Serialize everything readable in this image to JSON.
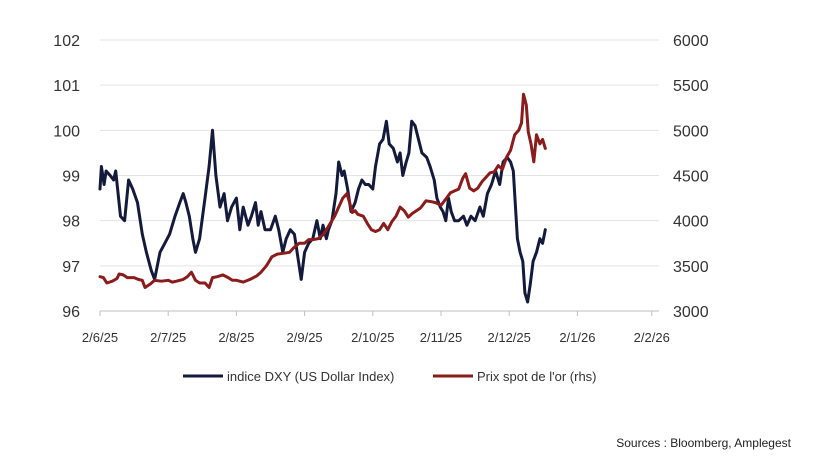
{
  "chart_data": {
    "type": "line",
    "title": "",
    "xlabel": "",
    "ylabel_left": "",
    "ylabel_right": "",
    "x_tick_labels": [
      "2/6/25",
      "2/7/25",
      "2/8/25",
      "2/9/25",
      "2/10/25",
      "2/11/25",
      "2/12/25",
      "2/1/26",
      "2/2/26"
    ],
    "x_range": [
      0,
      8.09
    ],
    "y_left": {
      "ticks": [
        96,
        97,
        98,
        99,
        100,
        101,
        102
      ],
      "range": [
        96,
        102
      ]
    },
    "y_right": {
      "ticks": [
        3000,
        3500,
        4000,
        4500,
        5000,
        5500,
        6000
      ],
      "range": [
        3000,
        6000
      ]
    },
    "grid": "horizontal",
    "legend_position": "bottom-center",
    "series": [
      {
        "name": "indice DXY (US Dollar Index)",
        "axis": "left",
        "color": "#141a3c",
        "points": [
          [
            0.0,
            98.7
          ],
          [
            0.02,
            99.2
          ],
          [
            0.06,
            98.8
          ],
          [
            0.09,
            99.1
          ],
          [
            0.15,
            99.0
          ],
          [
            0.2,
            98.9
          ],
          [
            0.23,
            99.1
          ],
          [
            0.3,
            98.1
          ],
          [
            0.36,
            98.0
          ],
          [
            0.42,
            98.9
          ],
          [
            0.48,
            98.7
          ],
          [
            0.55,
            98.4
          ],
          [
            0.62,
            97.7
          ],
          [
            0.68,
            97.3
          ],
          [
            0.75,
            96.9
          ],
          [
            0.8,
            96.7
          ],
          [
            0.88,
            97.3
          ],
          [
            0.95,
            97.5
          ],
          [
            1.02,
            97.7
          ],
          [
            1.1,
            98.1
          ],
          [
            1.17,
            98.4
          ],
          [
            1.22,
            98.6
          ],
          [
            1.26,
            98.4
          ],
          [
            1.31,
            98.1
          ],
          [
            1.36,
            97.6
          ],
          [
            1.4,
            97.3
          ],
          [
            1.46,
            97.6
          ],
          [
            1.54,
            98.5
          ],
          [
            1.6,
            99.2
          ],
          [
            1.65,
            100.0
          ],
          [
            1.7,
            99.0
          ],
          [
            1.76,
            98.3
          ],
          [
            1.82,
            98.6
          ],
          [
            1.87,
            98.0
          ],
          [
            1.93,
            98.3
          ],
          [
            2.0,
            98.5
          ],
          [
            2.05,
            97.8
          ],
          [
            2.1,
            98.3
          ],
          [
            2.17,
            97.9
          ],
          [
            2.22,
            98.1
          ],
          [
            2.28,
            98.4
          ],
          [
            2.32,
            97.9
          ],
          [
            2.36,
            98.2
          ],
          [
            2.42,
            97.8
          ],
          [
            2.5,
            97.8
          ],
          [
            2.57,
            98.1
          ],
          [
            2.62,
            97.8
          ],
          [
            2.68,
            97.3
          ],
          [
            2.73,
            97.6
          ],
          [
            2.79,
            97.8
          ],
          [
            2.85,
            97.7
          ],
          [
            2.9,
            97.2
          ],
          [
            2.95,
            96.7
          ],
          [
            3.0,
            97.3
          ],
          [
            3.06,
            97.5
          ],
          [
            3.12,
            97.6
          ],
          [
            3.18,
            98.0
          ],
          [
            3.23,
            97.6
          ],
          [
            3.27,
            97.9
          ],
          [
            3.32,
            97.6
          ],
          [
            3.35,
            97.8
          ],
          [
            3.4,
            98.0
          ],
          [
            3.46,
            98.6
          ],
          [
            3.5,
            99.3
          ],
          [
            3.55,
            99.0
          ],
          [
            3.58,
            99.1
          ],
          [
            3.63,
            98.7
          ],
          [
            3.68,
            98.2
          ],
          [
            3.74,
            98.4
          ],
          [
            3.79,
            98.7
          ],
          [
            3.84,
            98.9
          ],
          [
            3.89,
            98.8
          ],
          [
            3.94,
            98.8
          ],
          [
            4.0,
            98.7
          ],
          [
            4.04,
            99.2
          ],
          [
            4.1,
            99.7
          ],
          [
            4.15,
            99.8
          ],
          [
            4.2,
            100.2
          ],
          [
            4.24,
            99.7
          ],
          [
            4.3,
            99.6
          ],
          [
            4.36,
            99.3
          ],
          [
            4.4,
            99.5
          ],
          [
            4.44,
            99.0
          ],
          [
            4.49,
            99.3
          ],
          [
            4.53,
            99.5
          ],
          [
            4.57,
            100.2
          ],
          [
            4.62,
            100.1
          ],
          [
            4.67,
            99.8
          ],
          [
            4.72,
            99.5
          ],
          [
            4.79,
            99.4
          ],
          [
            4.84,
            99.2
          ],
          [
            4.9,
            98.9
          ],
          [
            4.94,
            98.5
          ],
          [
            4.99,
            98.3
          ],
          [
            5.03,
            98.2
          ],
          [
            5.07,
            98.0
          ],
          [
            5.11,
            98.5
          ],
          [
            5.15,
            98.2
          ],
          [
            5.2,
            98.0
          ],
          [
            5.26,
            98.0
          ],
          [
            5.33,
            98.1
          ],
          [
            5.38,
            97.9
          ],
          [
            5.44,
            98.1
          ],
          [
            5.5,
            98.0
          ],
          [
            5.57,
            98.3
          ],
          [
            5.62,
            98.1
          ],
          [
            5.68,
            98.6
          ],
          [
            5.74,
            98.8
          ],
          [
            5.8,
            99.1
          ],
          [
            5.86,
            98.8
          ],
          [
            5.91,
            99.3
          ],
          [
            5.97,
            99.4
          ],
          [
            6.02,
            99.3
          ],
          [
            6.06,
            99.1
          ],
          [
            6.12,
            97.6
          ],
          [
            6.16,
            97.3
          ],
          [
            6.2,
            97.1
          ],
          [
            6.23,
            96.4
          ],
          [
            6.27,
            96.2
          ],
          [
            6.31,
            96.6
          ],
          [
            6.35,
            97.1
          ],
          [
            6.4,
            97.3
          ],
          [
            6.45,
            97.6
          ],
          [
            6.49,
            97.5
          ],
          [
            6.53,
            97.8
          ]
        ]
      },
      {
        "name": "Prix spot de l'or (rhs)",
        "axis": "right",
        "color": "#8c1b1b",
        "points": [
          [
            0.0,
            3380
          ],
          [
            0.05,
            3370
          ],
          [
            0.1,
            3310
          ],
          [
            0.18,
            3330
          ],
          [
            0.25,
            3360
          ],
          [
            0.28,
            3410
          ],
          [
            0.34,
            3400
          ],
          [
            0.4,
            3370
          ],
          [
            0.5,
            3370
          ],
          [
            0.56,
            3350
          ],
          [
            0.62,
            3340
          ],
          [
            0.66,
            3260
          ],
          [
            0.74,
            3300
          ],
          [
            0.8,
            3340
          ],
          [
            0.9,
            3330
          ],
          [
            1.0,
            3340
          ],
          [
            1.06,
            3320
          ],
          [
            1.12,
            3330
          ],
          [
            1.22,
            3350
          ],
          [
            1.28,
            3380
          ],
          [
            1.34,
            3430
          ],
          [
            1.4,
            3340
          ],
          [
            1.46,
            3310
          ],
          [
            1.54,
            3310
          ],
          [
            1.6,
            3260
          ],
          [
            1.65,
            3370
          ],
          [
            1.72,
            3380
          ],
          [
            1.8,
            3400
          ],
          [
            1.88,
            3370
          ],
          [
            1.94,
            3340
          ],
          [
            2.0,
            3340
          ],
          [
            2.1,
            3320
          ],
          [
            2.2,
            3350
          ],
          [
            2.3,
            3390
          ],
          [
            2.36,
            3430
          ],
          [
            2.44,
            3500
          ],
          [
            2.52,
            3600
          ],
          [
            2.6,
            3630
          ],
          [
            2.7,
            3640
          ],
          [
            2.78,
            3650
          ],
          [
            2.84,
            3700
          ],
          [
            2.92,
            3750
          ],
          [
            3.0,
            3750
          ],
          [
            3.06,
            3790
          ],
          [
            3.12,
            3790
          ],
          [
            3.2,
            3800
          ],
          [
            3.28,
            3850
          ],
          [
            3.36,
            3950
          ],
          [
            3.44,
            4050
          ],
          [
            3.5,
            4150
          ],
          [
            3.56,
            4250
          ],
          [
            3.62,
            4300
          ],
          [
            3.66,
            4200
          ],
          [
            3.7,
            4090
          ],
          [
            3.74,
            4110
          ],
          [
            3.78,
            4070
          ],
          [
            3.86,
            4050
          ],
          [
            3.92,
            3970
          ],
          [
            3.98,
            3900
          ],
          [
            4.04,
            3880
          ],
          [
            4.1,
            3900
          ],
          [
            4.16,
            3970
          ],
          [
            4.22,
            3900
          ],
          [
            4.28,
            3990
          ],
          [
            4.34,
            4050
          ],
          [
            4.4,
            4150
          ],
          [
            4.46,
            4110
          ],
          [
            4.52,
            4040
          ],
          [
            4.58,
            4080
          ],
          [
            4.64,
            4110
          ],
          [
            4.7,
            4140
          ],
          [
            4.78,
            4220
          ],
          [
            4.86,
            4210
          ],
          [
            4.92,
            4200
          ],
          [
            5.0,
            4170
          ],
          [
            5.08,
            4250
          ],
          [
            5.14,
            4310
          ],
          [
            5.2,
            4330
          ],
          [
            5.26,
            4350
          ],
          [
            5.32,
            4470
          ],
          [
            5.36,
            4520
          ],
          [
            5.42,
            4360
          ],
          [
            5.48,
            4330
          ],
          [
            5.54,
            4360
          ],
          [
            5.6,
            4430
          ],
          [
            5.66,
            4480
          ],
          [
            5.72,
            4530
          ],
          [
            5.78,
            4540
          ],
          [
            5.84,
            4610
          ],
          [
            5.9,
            4570
          ],
          [
            5.96,
            4700
          ],
          [
            6.02,
            4780
          ],
          [
            6.08,
            4950
          ],
          [
            6.14,
            5000
          ],
          [
            6.18,
            5080
          ],
          [
            6.21,
            5400
          ],
          [
            6.25,
            5280
          ],
          [
            6.28,
            4980
          ],
          [
            6.32,
            4850
          ],
          [
            6.36,
            4650
          ],
          [
            6.4,
            4950
          ],
          [
            6.45,
            4850
          ],
          [
            6.49,
            4900
          ],
          [
            6.53,
            4800
          ]
        ]
      }
    ]
  },
  "source_text": "Sources : Bloomberg, Amplegest"
}
